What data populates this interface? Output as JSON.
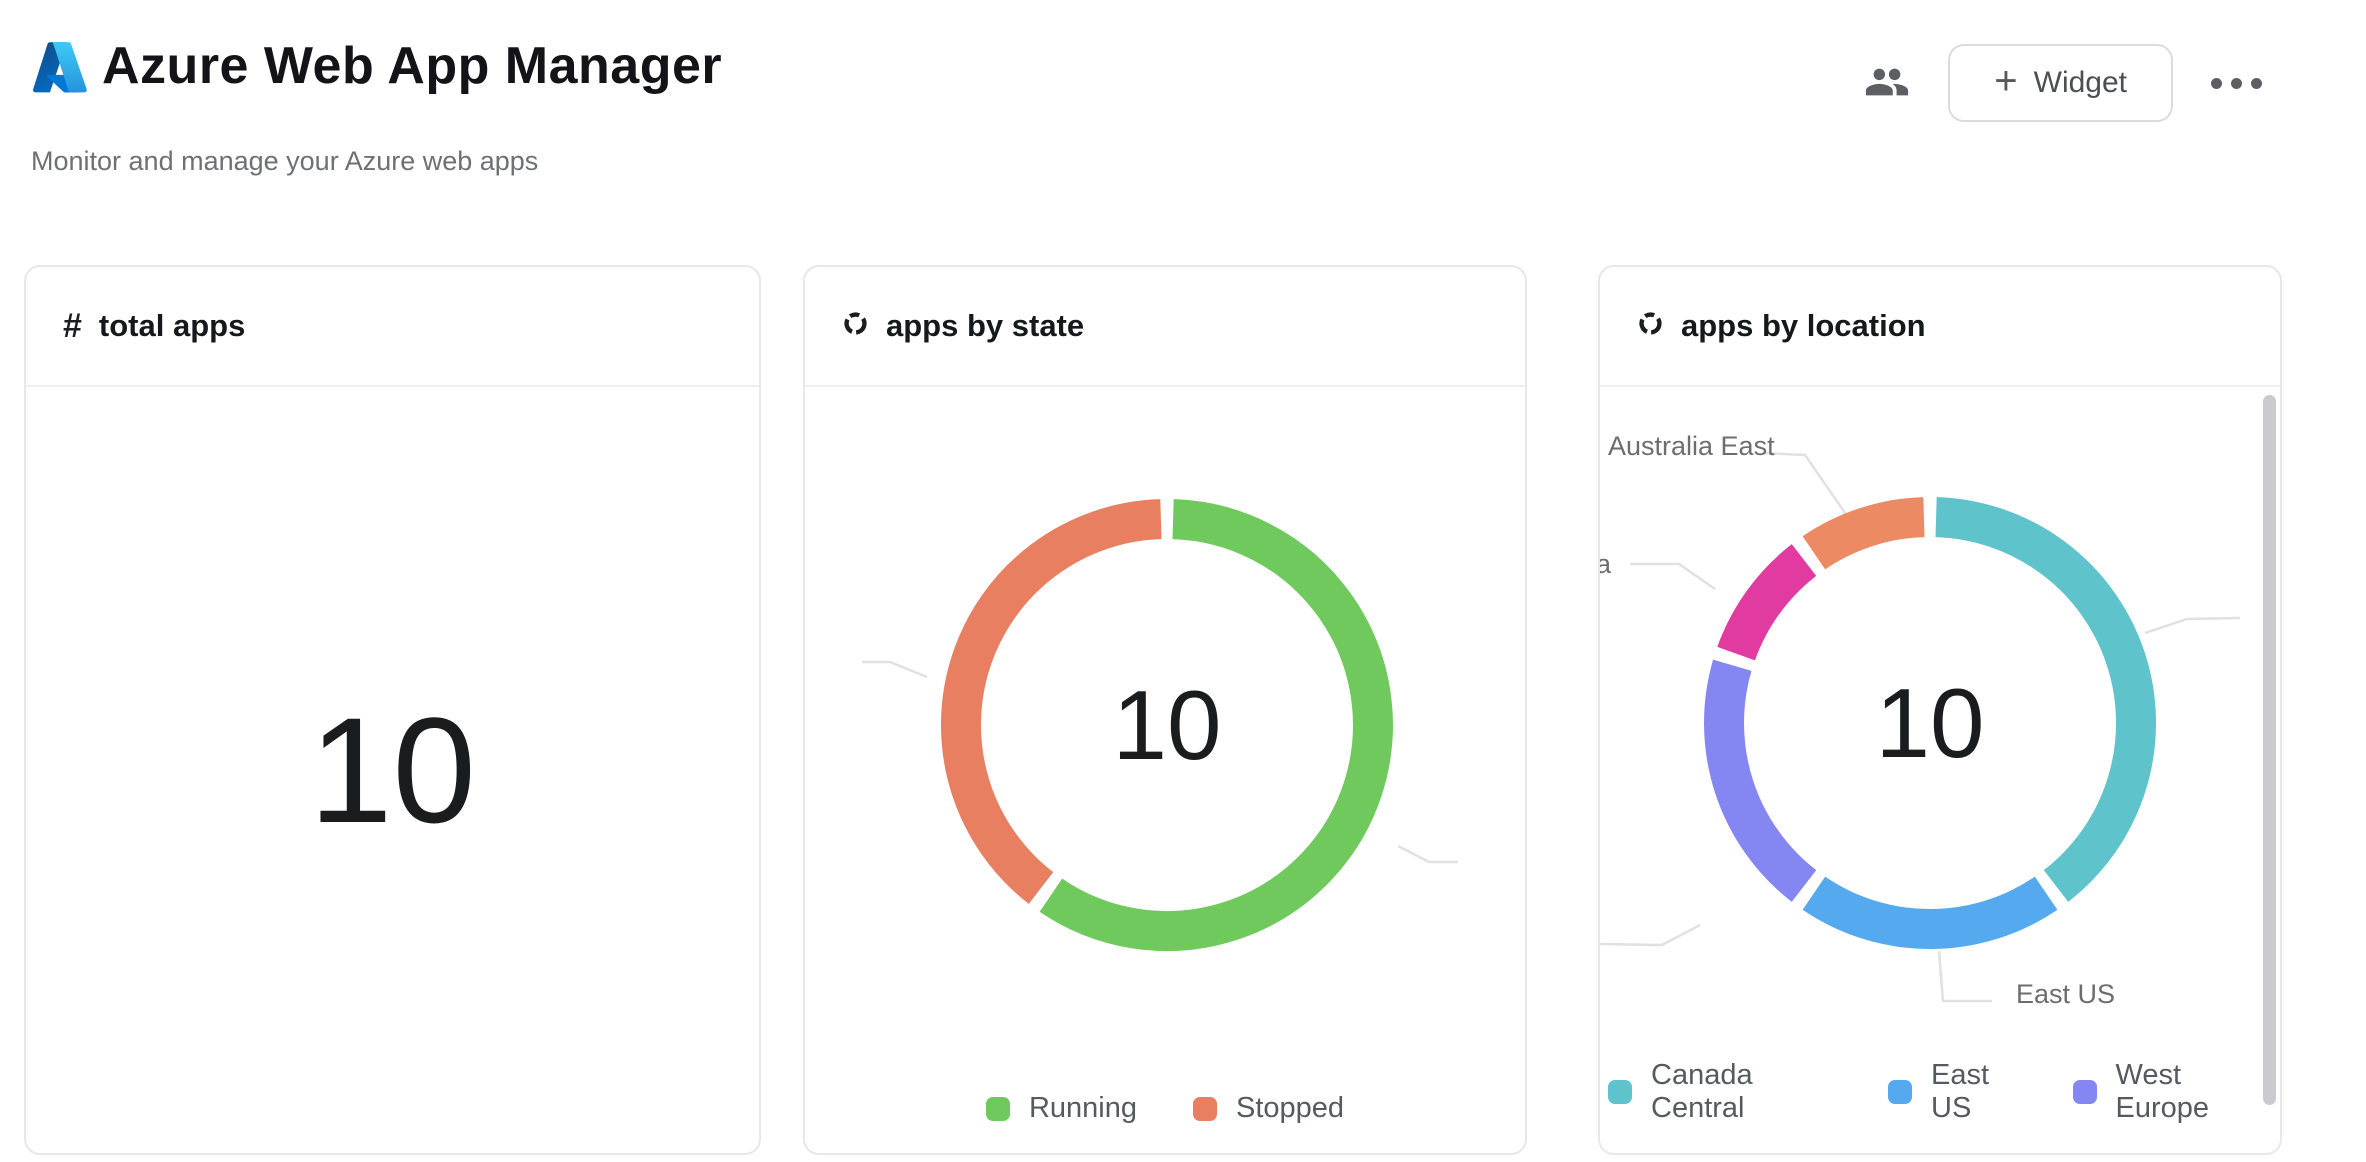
{
  "header": {
    "title": "Azure Web App Manager",
    "subtitle": "Monitor and manage your Azure web apps",
    "widget_button_plus": "+",
    "widget_button_label": "Widget"
  },
  "icons": {
    "logo": "azure-logo",
    "share": "people-icon",
    "more": "ellipsis-icon",
    "total_apps": "hash-icon",
    "chart_cards": "donut-chart-icon"
  },
  "colors": {
    "running_green": "#6fc95c",
    "stopped_salmon": "#e87f61",
    "canada_central_teal": "#5ec3cb",
    "east_us_blue": "#55a9ef",
    "west_europe_purple": "#8486f1",
    "magenta_slice": "#e13aa0",
    "australia_east_orange": "#ec8a63",
    "card_border": "#e8e8ea",
    "leader_line": "#e1e1e3",
    "text_dark": "#17181b",
    "text_gray": "#6d6d6d"
  },
  "cards": {
    "total_apps": {
      "title": "total apps",
      "icon_glyph": "#",
      "value": "10"
    },
    "apps_by_state": {
      "title": "apps by state",
      "center_value": "10",
      "legend": [
        {
          "label": "Running",
          "color": "#6fc95c"
        },
        {
          "label": "Stopped",
          "color": "#e87f61"
        }
      ]
    },
    "apps_by_location": {
      "title": "apps by location",
      "center_value": "10",
      "outer_labels": {
        "australia_east": "Australia East",
        "east_us": "East US",
        "clipped_left_fragment": "a"
      },
      "legend": [
        {
          "label": "Canada Central",
          "color": "#5ec3cb"
        },
        {
          "label": "East US",
          "color": "#55a9ef"
        },
        {
          "label": "West Europe",
          "color": "#8486f1"
        }
      ]
    }
  },
  "chart_data": [
    {
      "type": "pie",
      "title": "apps by state",
      "donut": true,
      "total": 10,
      "center_label": "10",
      "legend_position": "bottom",
      "series": [
        {
          "name": "Running",
          "value": 6,
          "color": "#6fc95c"
        },
        {
          "name": "Stopped",
          "value": 4,
          "color": "#e87f61"
        }
      ]
    },
    {
      "type": "pie",
      "title": "apps by location",
      "donut": true,
      "total": 10,
      "center_label": "10",
      "legend_position": "bottom",
      "series": [
        {
          "name": "Canada Central",
          "value": 4,
          "color": "#5ec3cb"
        },
        {
          "name": "East US",
          "value": 2,
          "color": "#55a9ef"
        },
        {
          "name": "West Europe",
          "value": 2,
          "color": "#8486f1"
        },
        {
          "name": "a",
          "value": 1,
          "color": "#e13aa0"
        },
        {
          "name": "Australia East",
          "value": 1,
          "color": "#ec8a63"
        }
      ]
    }
  ]
}
